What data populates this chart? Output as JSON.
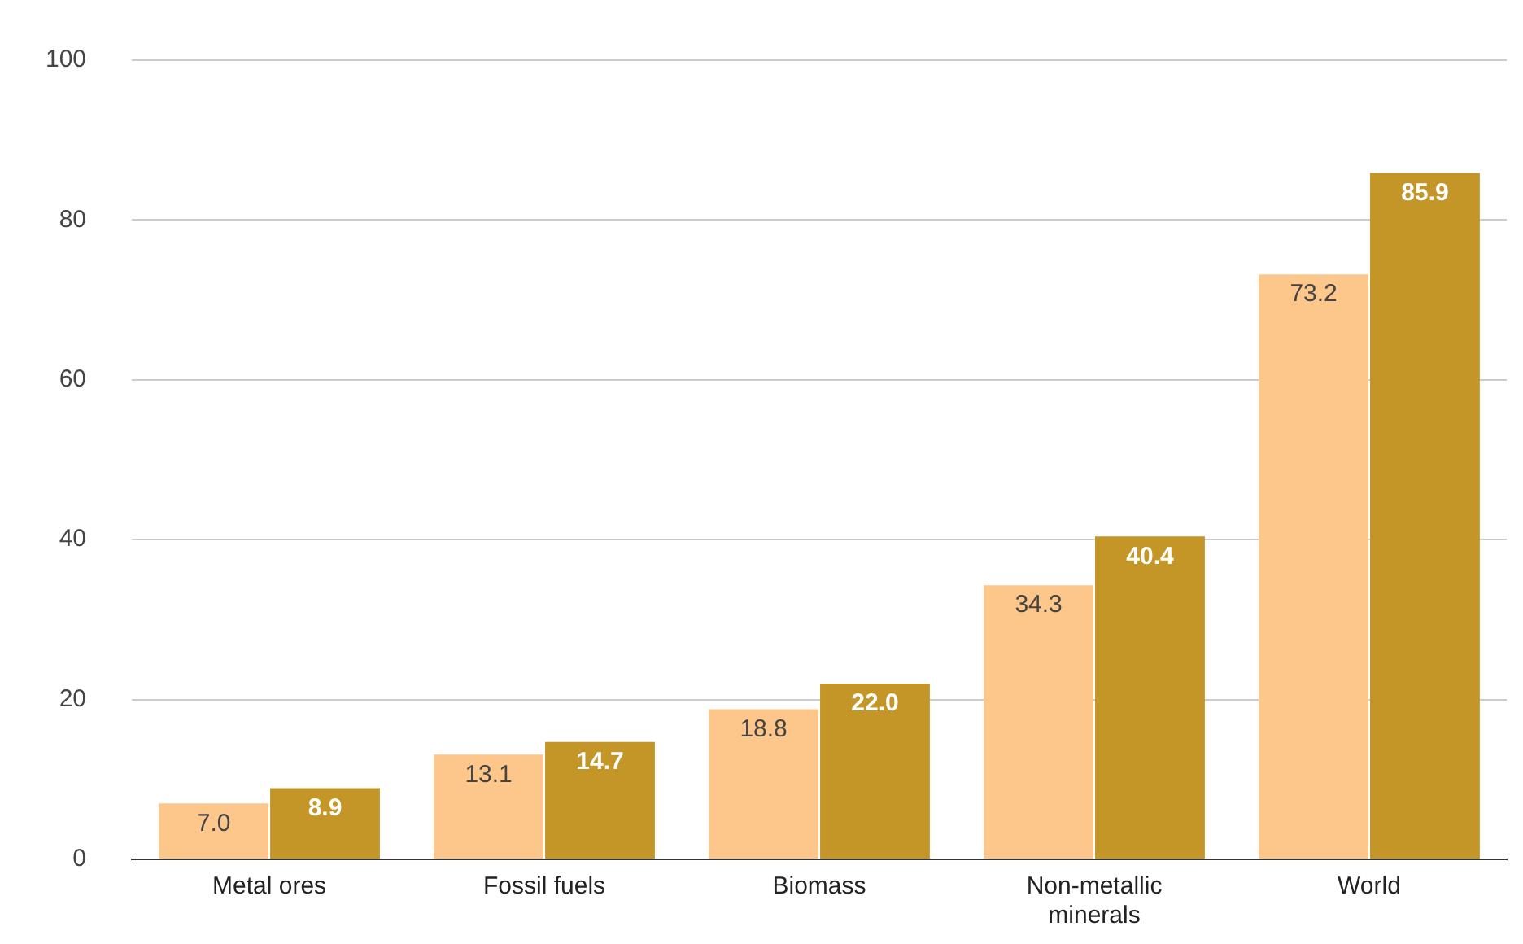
{
  "chart_data": {
    "type": "bar",
    "categories": [
      "Metal ores",
      "Fossil fuels",
      "Biomass",
      "Non-metallic minerals",
      "World"
    ],
    "series": [
      {
        "color": "#fdc78c",
        "values": [
          7.0,
          13.1,
          18.8,
          34.3,
          73.2
        ],
        "value_labels": [
          "7.0",
          "13.1",
          "18.8",
          "34.3",
          "73.2"
        ]
      },
      {
        "color": "#c49527",
        "values": [
          8.9,
          14.7,
          22.0,
          40.4,
          85.9
        ],
        "value_labels": [
          "8.9",
          "14.7",
          "22.0",
          "40.4",
          "85.9"
        ]
      }
    ],
    "ylim": [
      0,
      100
    ],
    "yticks": [
      0,
      20,
      40,
      60,
      80,
      100
    ],
    "grid": "y",
    "legend": false
  }
}
